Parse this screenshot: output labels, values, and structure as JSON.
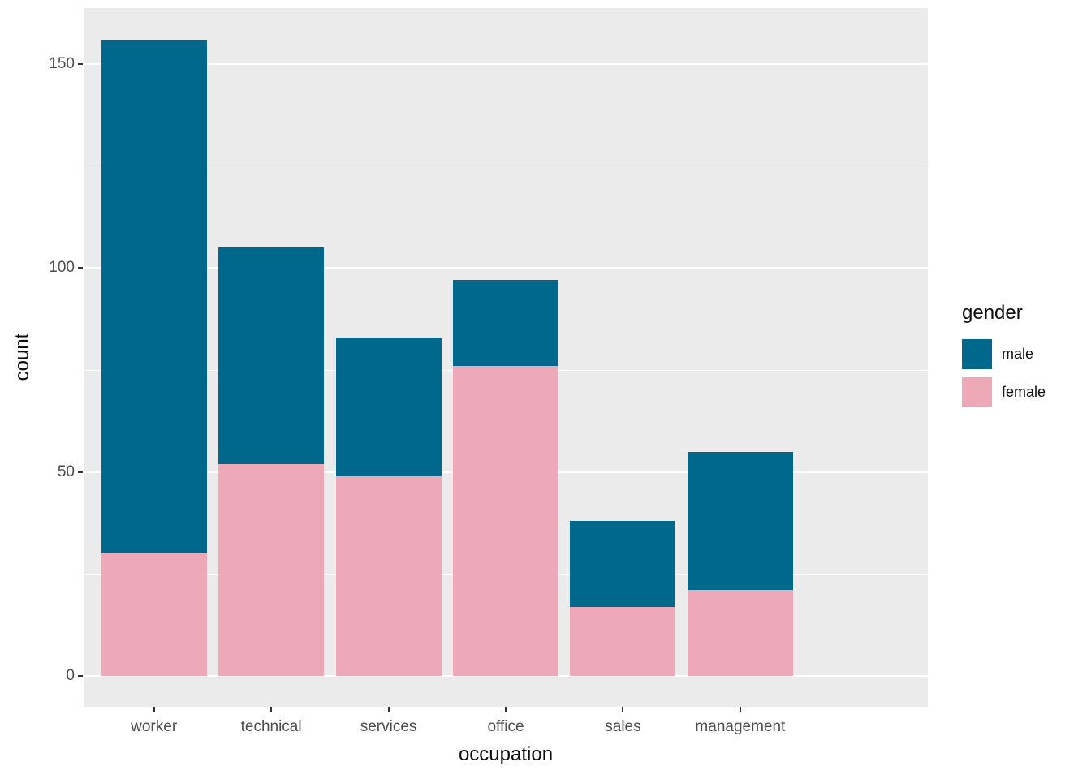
{
  "chart_data": {
    "type": "bar",
    "stacked": true,
    "title": "",
    "xlabel": "occupation",
    "ylabel": "count",
    "categories": [
      "worker",
      "technical",
      "services",
      "office",
      "sales",
      "management"
    ],
    "series": [
      {
        "name": "female",
        "color": "#EEA9B8",
        "values": [
          30,
          52,
          49,
          76,
          17,
          21
        ]
      },
      {
        "name": "male",
        "color": "#00688B",
        "values": [
          126,
          53,
          34,
          21,
          21,
          34
        ]
      }
    ],
    "ylim": [
      0,
      160
    ],
    "yticks": [
      0,
      50,
      100,
      150
    ],
    "yticks_minor": [
      25,
      75,
      125
    ],
    "grid": true,
    "legend": {
      "title": "gender",
      "position": "right",
      "entries": [
        "male",
        "female"
      ]
    },
    "colors": {
      "panel_background": "#EBEBEB",
      "gridline": "#FFFFFF",
      "tick_text": "#4D4D4D",
      "axis_title_text": "#0d0d0d",
      "tick_mark": "#333333"
    }
  }
}
